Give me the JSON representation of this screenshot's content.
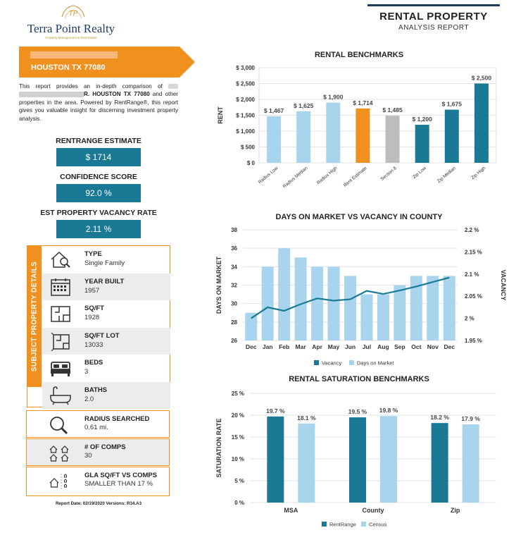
{
  "header": {
    "logo_initials": "TP",
    "logo_name": "Terra Point Realty",
    "logo_tagline": "Property Management & Real Estate",
    "report_title": "RENTAL PROPERTY",
    "report_subtitle": "ANALYSIS REPORT"
  },
  "address": {
    "city_line": "HOUSTON TX 77080"
  },
  "intro": {
    "part1": "This report provides an in-depth comparison of",
    "part2": "R. HOUSTON TX 77080",
    "part3": "and other properties in the area. Powered by RentRange®, this report gives you valuable insight for discerning investment property analysis."
  },
  "metrics": [
    {
      "label": "RENTRANGE ESTIMATE",
      "value": "$ 1714"
    },
    {
      "label": "CONFIDENCE SCORE",
      "value": "92.0 %"
    },
    {
      "label": "EST PROPERTY VACANCY RATE",
      "value": "2.11 %"
    }
  ],
  "details": {
    "tab_label": "SUBJECT PROPERTY DETAILS",
    "rows": [
      {
        "label": "TYPE",
        "value": "Single Family",
        "icon": "house-search-icon"
      },
      {
        "label": "YEAR BUILT",
        "value": "1957",
        "icon": "calendar-icon"
      },
      {
        "label": "SQ/FT",
        "value": "1928",
        "icon": "floorplan-icon"
      },
      {
        "label": "SQ/FT LOT",
        "value": "13033",
        "icon": "lot-plan-icon"
      },
      {
        "label": "BEDS",
        "value": "3",
        "icon": "bed-icon"
      },
      {
        "label": "BATHS",
        "value": "2.0",
        "icon": "bathtub-icon"
      }
    ],
    "extra": [
      {
        "label": "RADIUS SEARCHED",
        "value": "0.61 mi.",
        "icon": "magnifier-icon"
      },
      {
        "label": "# OF COMPS",
        "value": "30",
        "icon": "houses-icon"
      },
      {
        "label": "GLA SQ/FT VS COMPS",
        "value": "SMALLER THAN 17 %",
        "icon": "house-compare-icon"
      }
    ]
  },
  "footer": {
    "report_date": "Report Date: 02/19/2020 Versions: R34.A3"
  },
  "colors": {
    "orange": "#f0901e",
    "teal": "#1a7a96",
    "light_blue": "#a9d4ee",
    "gray": "#bdbdbd",
    "navy": "#1f3a5f"
  },
  "chart_data": [
    {
      "type": "bar",
      "title": "RENTAL BENCHMARKS",
      "ylabel": "RENT",
      "ylim": [
        0,
        3000
      ],
      "yticks": [
        "$ 0",
        "$ 500",
        "$ 1,000",
        "$ 1,500",
        "$ 2,000",
        "$ 2,500",
        "$ 3,000"
      ],
      "categories": [
        "Radius Low",
        "Radius Median",
        "Radius High",
        "Rent Estimate",
        "Section 8",
        "Zip Low",
        "Zip Median",
        "Zip High"
      ],
      "values": [
        1467,
        1625,
        1900,
        1714,
        1485,
        1200,
        1675,
        2500
      ],
      "data_labels": [
        "$ 1,467",
        "$ 1,625",
        "$ 1,900",
        "$ 1,714",
        "$ 1,485",
        "$ 1,200",
        "$ 1,675",
        "$ 2,500"
      ],
      "bar_colors": [
        "#a9d4ee",
        "#a9d4ee",
        "#a9d4ee",
        "#f0901e",
        "#bdbdbd",
        "#1a7a96",
        "#1a7a96",
        "#1a7a96"
      ],
      "grid": true
    },
    {
      "type": "bar",
      "title": "DAYS ON MARKET VS VACANCY IN COUNTY",
      "ylabel": "DAYS ON MARKET",
      "y2label": "VACANCY",
      "ylim": [
        26,
        38
      ],
      "y2lim": [
        1.95,
        2.2
      ],
      "yticks": [
        "26",
        "28",
        "30",
        "32",
        "34",
        "36",
        "38"
      ],
      "y2ticks": [
        "1.95 %",
        "2 %",
        "2.05 %",
        "2.1 %",
        "2.15 %",
        "2.2 %"
      ],
      "categories": [
        "Dec",
        "Jan",
        "Feb",
        "Mar",
        "Apr",
        "May",
        "Jun",
        "Jul",
        "Aug",
        "Sep",
        "Oct",
        "Nov",
        "Dec"
      ],
      "series": [
        {
          "name": "Days on Market",
          "kind": "bar",
          "color": "#a9d4ee",
          "values": [
            29,
            34,
            36,
            35,
            34,
            34,
            33,
            31,
            31,
            32,
            33,
            33,
            33
          ]
        },
        {
          "name": "Vacancy",
          "kind": "line",
          "color": "#1a7a96",
          "values": [
            2.0,
            2.025,
            2.017,
            2.032,
            2.045,
            2.04,
            2.043,
            2.062,
            2.055,
            2.063,
            2.072,
            2.082,
            2.092
          ]
        }
      ],
      "legend": "bottom",
      "grid": true
    },
    {
      "type": "bar",
      "title": "RENTAL SATURATION BENCHMARKS",
      "ylabel": "SATURATION RATE",
      "ylim": [
        0,
        25
      ],
      "yticks": [
        "0 %",
        "5 %",
        "10 %",
        "15 %",
        "20 %",
        "25 %"
      ],
      "categories": [
        "MSA",
        "County",
        "Zip"
      ],
      "series": [
        {
          "name": "RentRange",
          "color": "#1a7a96",
          "values": [
            19.7,
            19.5,
            18.2
          ],
          "labels": [
            "19.7 %",
            "19.5 %",
            "18.2 %"
          ]
        },
        {
          "name": "Census",
          "color": "#a9d4ee",
          "values": [
            18.1,
            19.8,
            17.9
          ],
          "labels": [
            "18.1 %",
            "19.8 %",
            "17.9 %"
          ]
        }
      ],
      "legend": "bottom",
      "grid": true
    }
  ]
}
